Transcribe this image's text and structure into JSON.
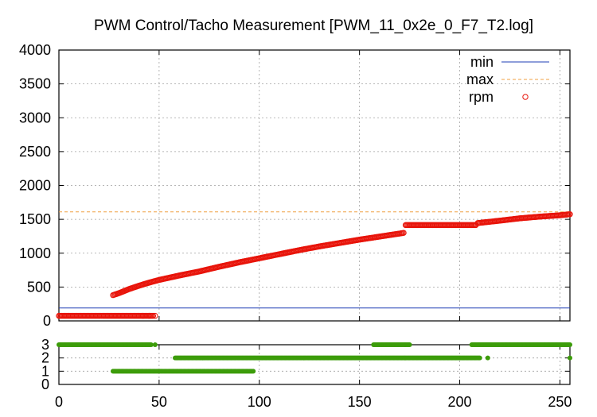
{
  "chart_data": [
    {
      "type": "scatter",
      "title": "PWM Control/Tacho Measurement [PWM_11_0x2e_0_F7_T2.log]",
      "xlabel": "",
      "ylabel": "",
      "xlim": [
        0,
        255
      ],
      "ylim": [
        0,
        4000
      ],
      "grid": true,
      "legend_position": "top-right",
      "x_ticks": [
        "0",
        "50",
        "100",
        "150",
        "200",
        "250"
      ],
      "y_ticks": [
        "0",
        "500",
        "1000",
        "1500",
        "2000",
        "2500",
        "3000",
        "3500",
        "4000"
      ],
      "legend": [
        {
          "label": "min",
          "style": "line",
          "color": "#1c3cb4"
        },
        {
          "label": "max",
          "style": "dashed",
          "color": "#f0a040"
        },
        {
          "label": "rpm",
          "style": "circle",
          "color": "#e8140a"
        }
      ],
      "reference_lines": {
        "min": 190,
        "max": 1610
      },
      "rpm_segments": [
        {
          "from": 0,
          "to": 47,
          "type": "flat",
          "value": 75
        },
        {
          "from": 27,
          "to": 172,
          "type": "points",
          "points": [
            [
              27,
              380
            ],
            [
              30,
              410
            ],
            [
              35,
              470
            ],
            [
              40,
              520
            ],
            [
              45,
              565
            ],
            [
              50,
              605
            ],
            [
              60,
              670
            ],
            [
              70,
              730
            ],
            [
              80,
              800
            ],
            [
              90,
              865
            ],
            [
              100,
              925
            ],
            [
              110,
              985
            ],
            [
              120,
              1045
            ],
            [
              130,
              1100
            ],
            [
              140,
              1150
            ],
            [
              150,
              1200
            ],
            [
              160,
              1245
            ],
            [
              170,
              1290
            ],
            [
              172,
              1300
            ]
          ]
        },
        {
          "from": 173,
          "to": 208,
          "type": "flat",
          "value": 1415
        },
        {
          "from": 209,
          "to": 255,
          "type": "points",
          "points": [
            [
              209,
              1445
            ],
            [
              220,
              1480
            ],
            [
              230,
              1515
            ],
            [
              240,
              1540
            ],
            [
              250,
              1560
            ],
            [
              255,
              1575
            ]
          ]
        }
      ],
      "rpm_outliers": [
        [
          42,
          75
        ],
        [
          45,
          75
        ],
        [
          48,
          75
        ]
      ],
      "rpm_color": "#e8140a",
      "grid_color": "#a0a0a0"
    },
    {
      "type": "scatter",
      "title": "",
      "xlabel": "",
      "ylabel": "",
      "xlim": [
        0,
        255
      ],
      "ylim": [
        0,
        3
      ],
      "grid": true,
      "x_ticks": [
        "0",
        "50",
        "100",
        "150",
        "200",
        "250"
      ],
      "y_ticks": [
        "0",
        "1",
        "2",
        "3"
      ],
      "series_color": "#3c9c0a",
      "state_segments": [
        {
          "from": 0,
          "to": 46,
          "value": 3
        },
        {
          "from": 157,
          "to": 175,
          "value": 3
        },
        {
          "from": 206,
          "to": 255,
          "value": 3
        },
        {
          "from": 58,
          "to": 210,
          "value": 2
        },
        {
          "from": 27,
          "to": 97,
          "value": 1
        }
      ],
      "state_points": [
        [
          48,
          3
        ],
        [
          214,
          2
        ],
        [
          255,
          2
        ]
      ]
    }
  ]
}
